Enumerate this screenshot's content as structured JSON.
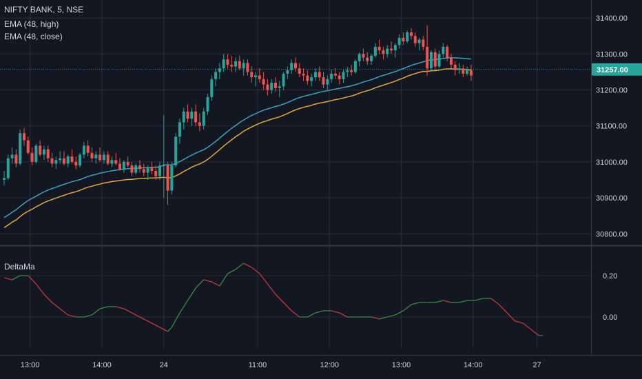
{
  "chart_data": [
    {
      "type": "candlestick",
      "title": "NIFTY BANK, 5, NSE",
      "indicators": [
        {
          "name": "EMA (48, high)",
          "color": "#38a3c2"
        },
        {
          "name": "EMA (48, close)",
          "color": "#e3a93a"
        }
      ],
      "current_price": "31257.00",
      "current_price_value": 31257,
      "y_ticks": [
        "31400.00",
        "31300.00",
        "31200.00",
        "31100.00",
        "31000.00",
        "30900.00",
        "30800.00"
      ],
      "y_tick_values": [
        31400,
        31300,
        31200,
        31100,
        31000,
        30900,
        30800
      ],
      "ylim": [
        30770,
        31450
      ],
      "x_ticks": [
        "13:00",
        "14:00",
        "24",
        "11:00",
        "12:00",
        "13:00",
        "14:00",
        "27"
      ],
      "x_tick_positions": [
        6.5,
        24.5,
        40,
        63.5,
        81.5,
        99.5,
        117.5,
        133.5
      ],
      "x_range": [
        0,
        140
      ],
      "candles": [
        [
          30950,
          30975,
          30935,
          30955
        ],
        [
          30955,
          31020,
          30950,
          31010
        ],
        [
          31010,
          31040,
          30995,
          31020
        ],
        [
          31020,
          31035,
          30985,
          30995
        ],
        [
          30995,
          31090,
          30990,
          31080
        ],
        [
          31080,
          31095,
          31045,
          31060
        ],
        [
          31060,
          31070,
          31020,
          31025
        ],
        [
          31025,
          31040,
          30990,
          31000
        ],
        [
          31000,
          31050,
          30995,
          31045
        ],
        [
          31045,
          31060,
          31015,
          31020
        ],
        [
          31020,
          31045,
          31005,
          31035
        ],
        [
          31035,
          31045,
          31000,
          31010
        ],
        [
          31010,
          31025,
          30985,
          30995
        ],
        [
          30995,
          31015,
          30980,
          31005
        ],
        [
          31005,
          31030,
          30995,
          31010
        ],
        [
          31010,
          31030,
          30990,
          30995
        ],
        [
          30995,
          31020,
          30985,
          31015
        ],
        [
          31015,
          31035,
          30995,
          31000
        ],
        [
          31000,
          31015,
          30980,
          30990
        ],
        [
          30990,
          31025,
          30985,
          31020
        ],
        [
          31020,
          31055,
          31010,
          31045
        ],
        [
          31045,
          31060,
          31015,
          31025
        ],
        [
          31025,
          31040,
          31000,
          31010
        ],
        [
          31010,
          31030,
          30995,
          31020
        ],
        [
          31020,
          31040,
          31000,
          31005
        ],
        [
          31005,
          31030,
          30995,
          31020
        ],
        [
          31020,
          31030,
          30990,
          30995
        ],
        [
          30995,
          31015,
          30985,
          31005
        ],
        [
          31005,
          31025,
          30990,
          30995
        ],
        [
          30995,
          31010,
          30975,
          30980
        ],
        [
          30980,
          31005,
          30970,
          31000
        ],
        [
          31000,
          31015,
          30985,
          30990
        ],
        [
          30990,
          31000,
          30960,
          30970
        ],
        [
          30970,
          30995,
          30965,
          30990
        ],
        [
          30990,
          31005,
          30970,
          30980
        ],
        [
          30980,
          30995,
          30960,
          30970
        ],
        [
          30970,
          30990,
          30950,
          30985
        ],
        [
          30985,
          31000,
          30965,
          30975
        ],
        [
          30975,
          30990,
          30950,
          30960
        ],
        [
          30960,
          31000,
          30950,
          30990
        ],
        [
          30990,
          31130,
          30900,
          30990
        ],
        [
          30990,
          31000,
          30880,
          30920
        ],
        [
          30920,
          31000,
          30910,
          30990
        ],
        [
          30990,
          31080,
          30985,
          31070
        ],
        [
          31070,
          31120,
          31050,
          31110
        ],
        [
          31110,
          31150,
          31090,
          31140
        ],
        [
          31140,
          31160,
          31110,
          31120
        ],
        [
          31120,
          31150,
          31100,
          31140
        ],
        [
          31140,
          31160,
          31100,
          31110
        ],
        [
          31110,
          31135,
          31085,
          31100
        ],
        [
          31100,
          31150,
          31090,
          31140
        ],
        [
          31140,
          31190,
          31130,
          31180
        ],
        [
          31180,
          31240,
          31170,
          31230
        ],
        [
          31230,
          31260,
          31210,
          31250
        ],
        [
          31250,
          31275,
          31230,
          31260
        ],
        [
          31260,
          31300,
          31250,
          31285
        ],
        [
          31285,
          31300,
          31260,
          31270
        ],
        [
          31270,
          31295,
          31250,
          31265
        ],
        [
          31265,
          31290,
          31250,
          31280
        ],
        [
          31280,
          31295,
          31255,
          31260
        ],
        [
          31260,
          31285,
          31240,
          31275
        ],
        [
          31275,
          31285,
          31240,
          31250
        ],
        [
          31250,
          31265,
          31220,
          31235
        ],
        [
          31235,
          31250,
          31210,
          31240
        ],
        [
          31240,
          31260,
          31220,
          31230
        ],
        [
          31230,
          31250,
          31200,
          31215
        ],
        [
          31215,
          31230,
          31185,
          31200
        ],
        [
          31200,
          31230,
          31190,
          31220
        ],
        [
          31220,
          31235,
          31195,
          31205
        ],
        [
          31205,
          31225,
          31180,
          31210
        ],
        [
          31210,
          31250,
          31200,
          31245
        ],
        [
          31245,
          31265,
          31230,
          31255
        ],
        [
          31255,
          31285,
          31245,
          31275
        ],
        [
          31275,
          31290,
          31250,
          31260
        ],
        [
          31260,
          31275,
          31235,
          31245
        ],
        [
          31245,
          31260,
          31225,
          31240
        ],
        [
          31240,
          31255,
          31215,
          31225
        ],
        [
          31225,
          31245,
          31210,
          31235
        ],
        [
          31235,
          31260,
          31225,
          31250
        ],
        [
          31250,
          31265,
          31225,
          31235
        ],
        [
          31235,
          31250,
          31205,
          31215
        ],
        [
          31215,
          31240,
          31200,
          31230
        ],
        [
          31230,
          31255,
          31220,
          31245
        ],
        [
          31245,
          31260,
          31230,
          31240
        ],
        [
          31240,
          31250,
          31215,
          31230
        ],
        [
          31230,
          31255,
          31220,
          31250
        ],
        [
          31250,
          31265,
          31235,
          31255
        ],
        [
          31255,
          31270,
          31240,
          31250
        ],
        [
          31250,
          31285,
          31245,
          31280
        ],
        [
          31280,
          31305,
          31265,
          31300
        ],
        [
          31300,
          31315,
          31280,
          31290
        ],
        [
          31290,
          31305,
          31270,
          31280
        ],
        [
          31280,
          31300,
          31270,
          31295
        ],
        [
          31295,
          31330,
          31290,
          31320
        ],
        [
          31320,
          31340,
          31300,
          31310
        ],
        [
          31310,
          31320,
          31285,
          31300
        ],
        [
          31300,
          31325,
          31290,
          31315
        ],
        [
          31315,
          31335,
          31300,
          31310
        ],
        [
          31310,
          31330,
          31290,
          31325
        ],
        [
          31325,
          31355,
          31315,
          31345
        ],
        [
          31345,
          31360,
          31325,
          31335
        ],
        [
          31335,
          31365,
          31330,
          31360
        ],
        [
          31360,
          31372,
          31340,
          31350
        ],
        [
          31350,
          31360,
          31320,
          31330
        ],
        [
          31330,
          31345,
          31310,
          31340
        ],
        [
          31340,
          31350,
          31310,
          31320
        ],
        [
          31320,
          31380,
          31240,
          31260
        ],
        [
          31260,
          31310,
          31250,
          31305
        ],
        [
          31305,
          31315,
          31255,
          31265
        ],
        [
          31265,
          31310,
          31260,
          31300
        ],
        [
          31300,
          31330,
          31290,
          31320
        ],
        [
          31320,
          31325,
          31280,
          31290
        ],
        [
          31290,
          31300,
          31260,
          31270
        ],
        [
          31270,
          31280,
          31240,
          31255
        ],
        [
          31255,
          31275,
          31245,
          31260
        ],
        [
          31260,
          31270,
          31235,
          31245
        ],
        [
          31245,
          31265,
          31240,
          31255
        ],
        [
          31255,
          31270,
          31225,
          31240
        ]
      ]
    },
    {
      "type": "line",
      "title": "DeltaMa",
      "y_ticks": [
        "0.20",
        "0.00"
      ],
      "y_tick_values": [
        0.2,
        0.0
      ],
      "ylim": [
        -0.15,
        0.34
      ],
      "series_colors": {
        "up": "#3a8a3a",
        "down": "#c0393f"
      },
      "points": [
        [
          0,
          0.19
        ],
        [
          2,
          0.18
        ],
        [
          4,
          0.2
        ],
        [
          6,
          0.2
        ],
        [
          8,
          0.16
        ],
        [
          10,
          0.11
        ],
        [
          12,
          0.07
        ],
        [
          14,
          0.04
        ],
        [
          16,
          0.01
        ],
        [
          18,
          0.0
        ],
        [
          20,
          0.0
        ],
        [
          22,
          0.01
        ],
        [
          24,
          0.04
        ],
        [
          26,
          0.05
        ],
        [
          28,
          0.05
        ],
        [
          30,
          0.04
        ],
        [
          32,
          0.02
        ],
        [
          34,
          0.0
        ],
        [
          36,
          -0.02
        ],
        [
          38,
          -0.04
        ],
        [
          40,
          -0.06
        ],
        [
          41,
          -0.07
        ],
        [
          42,
          -0.05
        ],
        [
          44,
          0.02
        ],
        [
          46,
          0.08
        ],
        [
          48,
          0.14
        ],
        [
          50,
          0.18
        ],
        [
          52,
          0.17
        ],
        [
          54,
          0.15
        ],
        [
          56,
          0.21
        ],
        [
          58,
          0.23
        ],
        [
          60,
          0.26
        ],
        [
          62,
          0.24
        ],
        [
          64,
          0.21
        ],
        [
          66,
          0.16
        ],
        [
          68,
          0.11
        ],
        [
          70,
          0.07
        ],
        [
          72,
          0.03
        ],
        [
          74,
          0.0
        ],
        [
          76,
          0.0
        ],
        [
          78,
          0.02
        ],
        [
          80,
          0.03
        ],
        [
          82,
          0.03
        ],
        [
          84,
          0.02
        ],
        [
          86,
          0.0
        ],
        [
          88,
          0.0
        ],
        [
          90,
          0.0
        ],
        [
          92,
          0.0
        ],
        [
          94,
          -0.01
        ],
        [
          96,
          0.0
        ],
        [
          98,
          0.01
        ],
        [
          100,
          0.03
        ],
        [
          102,
          0.06
        ],
        [
          104,
          0.07
        ],
        [
          106,
          0.07
        ],
        [
          108,
          0.07
        ],
        [
          110,
          0.08
        ],
        [
          112,
          0.07
        ],
        [
          114,
          0.07
        ],
        [
          116,
          0.08
        ],
        [
          118,
          0.08
        ],
        [
          120,
          0.09
        ],
        [
          122,
          0.09
        ],
        [
          124,
          0.06
        ],
        [
          126,
          0.02
        ],
        [
          128,
          -0.02
        ],
        [
          130,
          -0.03
        ],
        [
          132,
          -0.06
        ],
        [
          134,
          -0.09
        ],
        [
          135,
          -0.09
        ]
      ]
    }
  ]
}
